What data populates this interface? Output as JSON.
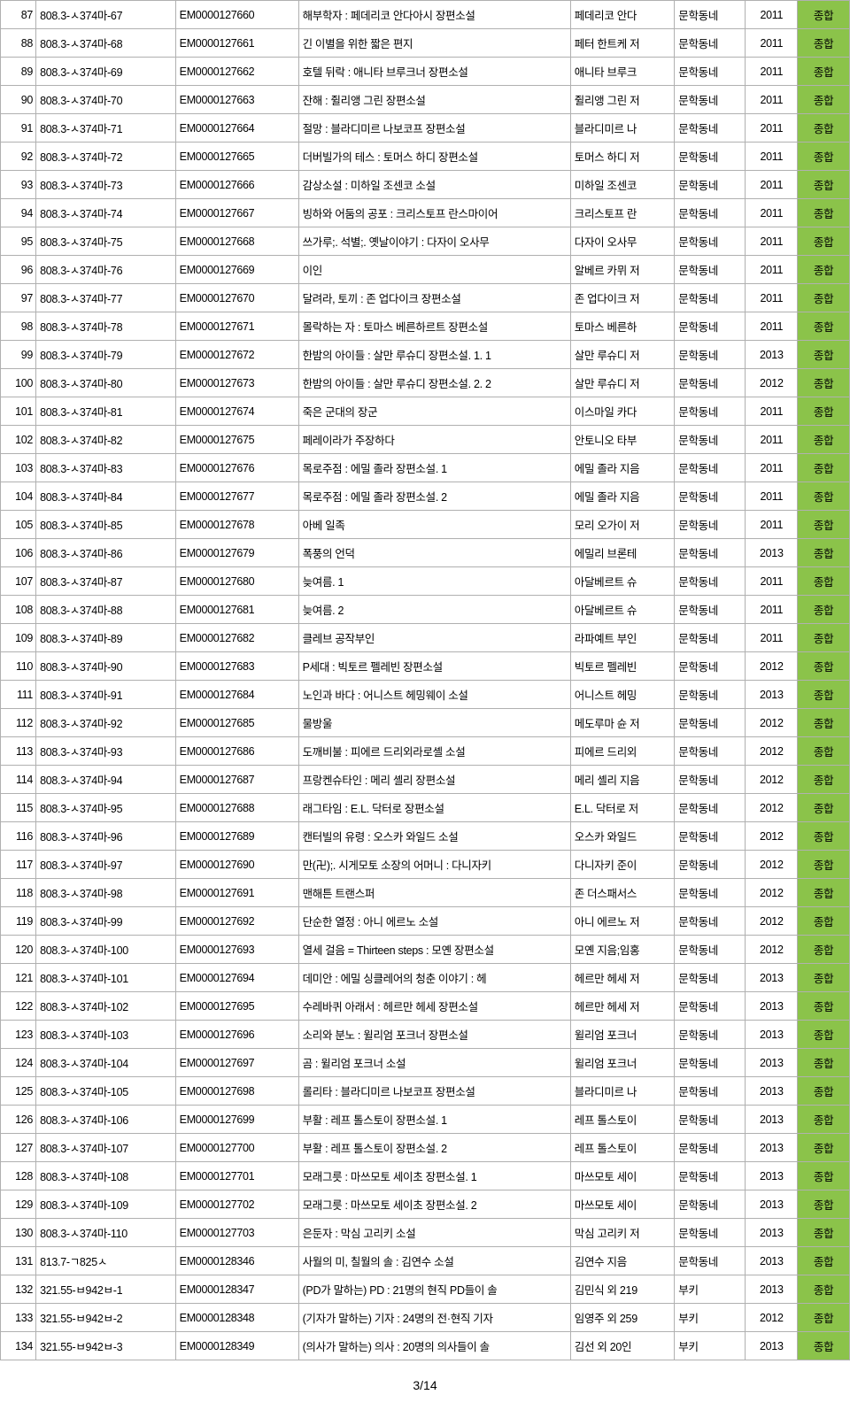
{
  "colors": {
    "tag_bg": "#8bc34a",
    "border": "#b0b0b0",
    "text": "#000000",
    "bg": "#ffffff"
  },
  "columns": [
    "num",
    "call",
    "em",
    "title",
    "author",
    "publisher",
    "year",
    "tag"
  ],
  "rows": [
    {
      "num": "87",
      "call": "808.3-ㅅ374마-67",
      "em": "EM0000127660",
      "title": "해부학자 : 페데리코 안다아시 장편소설",
      "author": "페데리코 안다",
      "publisher": "문학동네",
      "year": "2011",
      "tag": "종합"
    },
    {
      "num": "88",
      "call": "808.3-ㅅ374마-68",
      "em": "EM0000127661",
      "title": "긴 이별을 위한 짧은 편지",
      "author": "페터 한트케 저",
      "publisher": "문학동네",
      "year": "2011",
      "tag": "종합"
    },
    {
      "num": "89",
      "call": "808.3-ㅅ374마-69",
      "em": "EM0000127662",
      "title": "호텔 뒤락 : 애니타 브루크너 장편소설",
      "author": "애니타 브루크",
      "publisher": "문학동네",
      "year": "2011",
      "tag": "종합"
    },
    {
      "num": "90",
      "call": "808.3-ㅅ374마-70",
      "em": "EM0000127663",
      "title": "잔해 : 쥘리앵 그린 장편소설",
      "author": "쥘리앵 그린 저",
      "publisher": "문학동네",
      "year": "2011",
      "tag": "종합"
    },
    {
      "num": "91",
      "call": "808.3-ㅅ374마-71",
      "em": "EM0000127664",
      "title": "절망 : 블라디미르 나보코프 장편소설",
      "author": "블라디미르 나",
      "publisher": "문학동네",
      "year": "2011",
      "tag": "종합"
    },
    {
      "num": "92",
      "call": "808.3-ㅅ374마-72",
      "em": "EM0000127665",
      "title": "더버빌가의 테스 : 토머스 하디 장편소설",
      "author": "토머스 하디 저",
      "publisher": "문학동네",
      "year": "2011",
      "tag": "종합"
    },
    {
      "num": "93",
      "call": "808.3-ㅅ374마-73",
      "em": "EM0000127666",
      "title": "감상소설 : 미하일 조센코 소설",
      "author": "미하일 조센코",
      "publisher": "문학동네",
      "year": "2011",
      "tag": "종합"
    },
    {
      "num": "94",
      "call": "808.3-ㅅ374마-74",
      "em": "EM0000127667",
      "title": "빙하와 어둠의 공포 : 크리스토프 란스마이어",
      "author": "크리스토프 란",
      "publisher": "문학동네",
      "year": "2011",
      "tag": "종합"
    },
    {
      "num": "95",
      "call": "808.3-ㅅ374마-75",
      "em": "EM0000127668",
      "title": "쓰가루;. 석별;. 옛날이야기 : 다자이 오사무",
      "author": "다자이 오사무",
      "publisher": "문학동네",
      "year": "2011",
      "tag": "종합"
    },
    {
      "num": "96",
      "call": "808.3-ㅅ374마-76",
      "em": "EM0000127669",
      "title": "이인",
      "author": "알베르 카뮈 저",
      "publisher": "문학동네",
      "year": "2011",
      "tag": "종합"
    },
    {
      "num": "97",
      "call": "808.3-ㅅ374마-77",
      "em": "EM0000127670",
      "title": "달려라, 토끼 : 존 업다이크 장편소설",
      "author": "존 업다이크 저",
      "publisher": "문학동네",
      "year": "2011",
      "tag": "종합"
    },
    {
      "num": "98",
      "call": "808.3-ㅅ374마-78",
      "em": "EM0000127671",
      "title": "몰락하는 자 : 토마스 베른하르트 장편소설",
      "author": "토마스 베른하",
      "publisher": "문학동네",
      "year": "2011",
      "tag": "종합"
    },
    {
      "num": "99",
      "call": "808.3-ㅅ374마-79",
      "em": "EM0000127672",
      "title": "한밤의 아이들 : 살만 루슈디 장편소설. 1. 1",
      "author": "살만 루슈디 저",
      "publisher": "문학동네",
      "year": "2013",
      "tag": "종합"
    },
    {
      "num": "100",
      "call": "808.3-ㅅ374마-80",
      "em": "EM0000127673",
      "title": "한밤의 아이들 : 살만 루슈디 장편소설. 2. 2",
      "author": "살만 루슈디 저",
      "publisher": "문학동네",
      "year": "2012",
      "tag": "종합"
    },
    {
      "num": "101",
      "call": "808.3-ㅅ374마-81",
      "em": "EM0000127674",
      "title": "죽은 군대의 장군",
      "author": "이스마일 카다",
      "publisher": "문학동네",
      "year": "2011",
      "tag": "종합"
    },
    {
      "num": "102",
      "call": "808.3-ㅅ374마-82",
      "em": "EM0000127675",
      "title": "페레이라가 주장하다",
      "author": "안토니오 타부",
      "publisher": "문학동네",
      "year": "2011",
      "tag": "종합"
    },
    {
      "num": "103",
      "call": "808.3-ㅅ374마-83",
      "em": "EM0000127676",
      "title": "목로주점 : 에밀 졸라 장편소설. 1",
      "author": "에밀 졸라 지음",
      "publisher": "문학동네",
      "year": "2011",
      "tag": "종합"
    },
    {
      "num": "104",
      "call": "808.3-ㅅ374마-84",
      "em": "EM0000127677",
      "title": "목로주점 : 에밀 졸라 장편소설. 2",
      "author": "에밀 졸라 지음",
      "publisher": "문학동네",
      "year": "2011",
      "tag": "종합"
    },
    {
      "num": "105",
      "call": "808.3-ㅅ374마-85",
      "em": "EM0000127678",
      "title": "아베 일족",
      "author": "모리 오가이 저",
      "publisher": "문학동네",
      "year": "2011",
      "tag": "종합"
    },
    {
      "num": "106",
      "call": "808.3-ㅅ374마-86",
      "em": "EM0000127679",
      "title": "폭풍의 언덕",
      "author": "에밀리 브론테",
      "publisher": "문학동네",
      "year": "2013",
      "tag": "종합"
    },
    {
      "num": "107",
      "call": "808.3-ㅅ374마-87",
      "em": "EM0000127680",
      "title": "늦여름. 1",
      "author": "아달베르트 슈",
      "publisher": "문학동네",
      "year": "2011",
      "tag": "종합"
    },
    {
      "num": "108",
      "call": "808.3-ㅅ374마-88",
      "em": "EM0000127681",
      "title": "늦여름. 2",
      "author": "아달베르트 슈",
      "publisher": "문학동네",
      "year": "2011",
      "tag": "종합"
    },
    {
      "num": "109",
      "call": "808.3-ㅅ374마-89",
      "em": "EM0000127682",
      "title": "클레브 공작부인",
      "author": "라파예트 부인",
      "publisher": "문학동네",
      "year": "2011",
      "tag": "종합"
    },
    {
      "num": "110",
      "call": "808.3-ㅅ374마-90",
      "em": "EM0000127683",
      "title": "P세대 : 빅토르 펠레빈 장편소설",
      "author": "빅토르 펠레빈",
      "publisher": "문학동네",
      "year": "2012",
      "tag": "종합"
    },
    {
      "num": "111",
      "call": "808.3-ㅅ374마-91",
      "em": "EM0000127684",
      "title": "노인과 바다 : 어니스트 헤밍웨이 소설",
      "author": "어니스트 헤밍",
      "publisher": "문학동네",
      "year": "2013",
      "tag": "종합"
    },
    {
      "num": "112",
      "call": "808.3-ㅅ374마-92",
      "em": "EM0000127685",
      "title": "물방울",
      "author": "메도루마 슌 저",
      "publisher": "문학동네",
      "year": "2012",
      "tag": "종합"
    },
    {
      "num": "113",
      "call": "808.3-ㅅ374마-93",
      "em": "EM0000127686",
      "title": "도깨비불 : 피에르 드리외라로셸 소설",
      "author": "피에르 드리외",
      "publisher": "문학동네",
      "year": "2012",
      "tag": "종합"
    },
    {
      "num": "114",
      "call": "808.3-ㅅ374마-94",
      "em": "EM0000127687",
      "title": "프랑켄슈타인 : 메리 셸리 장편소설",
      "author": "메리 셸리 지음",
      "publisher": "문학동네",
      "year": "2012",
      "tag": "종합"
    },
    {
      "num": "115",
      "call": "808.3-ㅅ374마-95",
      "em": "EM0000127688",
      "title": "래그타임 : E.L. 닥터로 장편소설",
      "author": "E.L. 닥터로 저",
      "publisher": "문학동네",
      "year": "2012",
      "tag": "종합"
    },
    {
      "num": "116",
      "call": "808.3-ㅅ374마-96",
      "em": "EM0000127689",
      "title": "캔터빌의 유령 : 오스카 와일드 소설",
      "author": "오스카 와일드",
      "publisher": "문학동네",
      "year": "2012",
      "tag": "종합"
    },
    {
      "num": "117",
      "call": "808.3-ㅅ374마-97",
      "em": "EM0000127690",
      "title": "만(卍);. 시게모토 소장의 어머니 : 다니자키",
      "author": "다니자키 준이",
      "publisher": "문학동네",
      "year": "2012",
      "tag": "종합"
    },
    {
      "num": "118",
      "call": "808.3-ㅅ374마-98",
      "em": "EM0000127691",
      "title": "맨해튼 트랜스퍼",
      "author": "존 더스패서스",
      "publisher": "문학동네",
      "year": "2012",
      "tag": "종합"
    },
    {
      "num": "119",
      "call": "808.3-ㅅ374마-99",
      "em": "EM0000127692",
      "title": "단순한 열정 : 아니 에르노 소설",
      "author": "아니 에르노 저",
      "publisher": "문학동네",
      "year": "2012",
      "tag": "종합"
    },
    {
      "num": "120",
      "call": "808.3-ㅅ374마-100",
      "em": "EM0000127693",
      "title": "열세 걸음 = Thirteen steps : 모옌 장편소설",
      "author": "모옌 지음;임홍",
      "publisher": "문학동네",
      "year": "2012",
      "tag": "종합"
    },
    {
      "num": "121",
      "call": "808.3-ㅅ374마-101",
      "em": "EM0000127694",
      "title": "데미안 : 에밀 싱클레어의 청춘 이야기 : 헤",
      "author": "헤르만 헤세 저",
      "publisher": "문학동네",
      "year": "2013",
      "tag": "종합"
    },
    {
      "num": "122",
      "call": "808.3-ㅅ374마-102",
      "em": "EM0000127695",
      "title": "수레바퀴 아래서 : 헤르만 헤세 장편소설",
      "author": "헤르만 헤세 저",
      "publisher": "문학동네",
      "year": "2013",
      "tag": "종합"
    },
    {
      "num": "123",
      "call": "808.3-ㅅ374마-103",
      "em": "EM0000127696",
      "title": "소리와 분노 : 윌리엄 포크너 장편소설",
      "author": "윌리엄 포크너",
      "publisher": "문학동네",
      "year": "2013",
      "tag": "종합"
    },
    {
      "num": "124",
      "call": "808.3-ㅅ374마-104",
      "em": "EM0000127697",
      "title": "곰 : 윌리엄 포크너 소설",
      "author": "윌리엄 포크너",
      "publisher": "문학동네",
      "year": "2013",
      "tag": "종합"
    },
    {
      "num": "125",
      "call": "808.3-ㅅ374마-105",
      "em": "EM0000127698",
      "title": "롤리타 : 블라디미르 나보코프 장편소설",
      "author": "블라디미르 나",
      "publisher": "문학동네",
      "year": "2013",
      "tag": "종합"
    },
    {
      "num": "126",
      "call": "808.3-ㅅ374마-106",
      "em": "EM0000127699",
      "title": "부활 : 레프 톨스토이 장편소설. 1",
      "author": "레프 톨스토이",
      "publisher": "문학동네",
      "year": "2013",
      "tag": "종합"
    },
    {
      "num": "127",
      "call": "808.3-ㅅ374마-107",
      "em": "EM0000127700",
      "title": "부활 : 레프 톨스토이 장편소설. 2",
      "author": "레프 톨스토이",
      "publisher": "문학동네",
      "year": "2013",
      "tag": "종합"
    },
    {
      "num": "128",
      "call": "808.3-ㅅ374마-108",
      "em": "EM0000127701",
      "title": "모래그릇 : 마쓰모토 세이초 장편소설. 1",
      "author": "마쓰모토 세이",
      "publisher": "문학동네",
      "year": "2013",
      "tag": "종합"
    },
    {
      "num": "129",
      "call": "808.3-ㅅ374마-109",
      "em": "EM0000127702",
      "title": "모래그릇 : 마쓰모토 세이초 장편소설. 2",
      "author": "마쓰모토 세이",
      "publisher": "문학동네",
      "year": "2013",
      "tag": "종합"
    },
    {
      "num": "130",
      "call": "808.3-ㅅ374마-110",
      "em": "EM0000127703",
      "title": "은둔자 : 막심 고리키 소설",
      "author": "막심 고리키 저",
      "publisher": "문학동네",
      "year": "2013",
      "tag": "종합"
    },
    {
      "num": "131",
      "call": "813.7-ㄱ825ㅅ",
      "em": "EM0000128346",
      "title": "사월의 미, 칠월의 솔 : 김연수 소설",
      "author": "김연수 지음",
      "publisher": "문학동네",
      "year": "2013",
      "tag": "종합"
    },
    {
      "num": "132",
      "call": "321.55-ㅂ942ㅂ-1",
      "em": "EM0000128347",
      "title": "(PD가 말하는) PD : 21명의 현직 PD들이 솔",
      "author": "김민식 외 219",
      "publisher": "부키",
      "year": "2013",
      "tag": "종합"
    },
    {
      "num": "133",
      "call": "321.55-ㅂ942ㅂ-2",
      "em": "EM0000128348",
      "title": "(기자가 말하는) 기자 : 24명의 전·현직 기자",
      "author": "임영주 외 259",
      "publisher": "부키",
      "year": "2012",
      "tag": "종합"
    },
    {
      "num": "134",
      "call": "321.55-ㅂ942ㅂ-3",
      "em": "EM0000128349",
      "title": "(의사가 말하는) 의사 : 20명의 의사들이 솔",
      "author": "김선 외 20인",
      "publisher": "부키",
      "year": "2013",
      "tag": "종합"
    }
  ],
  "footer": "3/14"
}
